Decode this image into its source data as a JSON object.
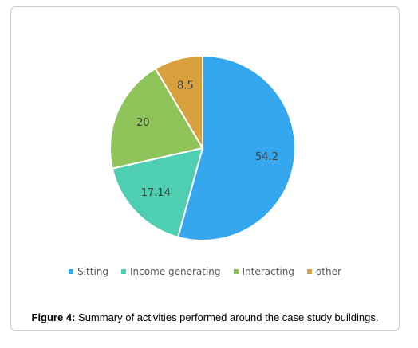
{
  "chart_data": {
    "type": "pie",
    "categories": [
      "Sitting",
      "Income generating",
      "Interacting",
      "other"
    ],
    "values": [
      54.2,
      17.14,
      20,
      8.5
    ],
    "value_labels": [
      "54.2",
      "17.14",
      "20",
      "8.5"
    ],
    "colors": [
      "#35a7ee",
      "#4ecfb2",
      "#8fc45a",
      "#d9a13e"
    ],
    "legend_position": "bottom",
    "start_angle": "12 o'clock",
    "direction": "clockwise"
  },
  "caption": {
    "label": "Figure 4:",
    "text": " Summary of activities performed around the case study buildings."
  }
}
